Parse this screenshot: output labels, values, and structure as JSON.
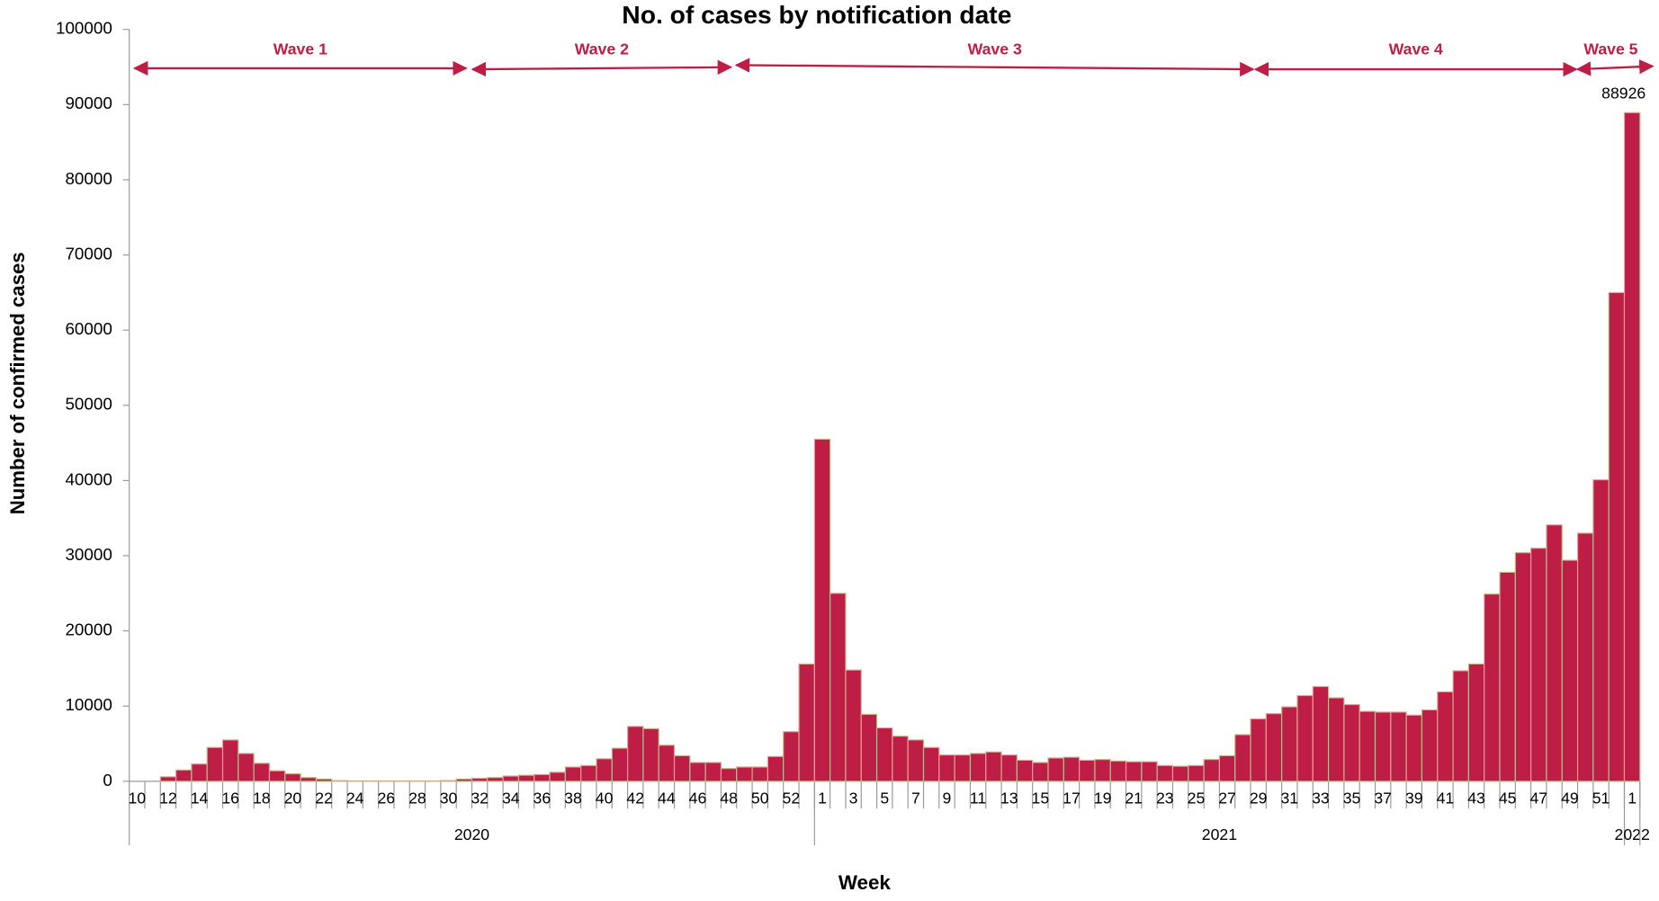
{
  "chart_data": {
    "type": "bar",
    "title": "No. of cases by notification date",
    "x_label": "Week",
    "y_label": "Number of confirmed cases",
    "categories": [
      "10",
      null,
      "12",
      null,
      "14",
      null,
      "16",
      null,
      "18",
      null,
      "20",
      null,
      "22",
      null,
      "24",
      null,
      "26",
      null,
      "28",
      null,
      "30",
      null,
      "32",
      null,
      "34",
      null,
      "36",
      null,
      "38",
      null,
      "40",
      null,
      "42",
      null,
      "44",
      null,
      "46",
      null,
      "48",
      null,
      "50",
      null,
      "52",
      null,
      "1",
      null,
      "3",
      null,
      "5",
      null,
      "7",
      null,
      "9",
      null,
      "11",
      null,
      "13",
      null,
      "15",
      null,
      "17",
      null,
      "19",
      null,
      "21",
      null,
      "23",
      null,
      "25",
      null,
      "27",
      null,
      "29",
      null,
      "31",
      null,
      "33",
      null,
      "35",
      null,
      "37",
      null,
      "39",
      null,
      "41",
      null,
      "43",
      null,
      "45",
      null,
      "47",
      null,
      "49",
      null,
      "51",
      null,
      "1"
    ],
    "year_labels": [
      "2020",
      "2021",
      "2022"
    ],
    "series": [
      {
        "name": "Confirmed cases",
        "color": "#be1e45",
        "values": [
          0,
          0,
          600,
          1500,
          2300,
          4500,
          5500,
          3700,
          2400,
          1400,
          1000,
          500,
          300,
          100,
          50,
          50,
          50,
          50,
          50,
          50,
          100,
          300,
          400,
          500,
          700,
          800,
          900,
          1200,
          1900,
          2100,
          3000,
          4400,
          7300,
          7000,
          4800,
          3400,
          2500,
          2500,
          1700,
          1900,
          1900,
          3300,
          6600,
          15600,
          45500,
          25000,
          14800,
          8900,
          7100,
          6000,
          5500,
          4500,
          3500,
          3500,
          3700,
          3900,
          3500,
          2800,
          2500,
          3100,
          3200,
          2800,
          2900,
          2700,
          2600,
          2600,
          2100,
          2000,
          2100,
          2900,
          3400,
          6200,
          8300,
          9000,
          9900,
          11400,
          12600,
          11100,
          10200,
          9300,
          9200,
          9200,
          8800,
          9500,
          11900,
          14700,
          15600,
          24900,
          27800,
          30400,
          31000,
          34100,
          29400,
          33000,
          40100,
          65000,
          88926
        ]
      }
    ],
    "annotations": [
      "Wave 1",
      "Wave 2",
      "Wave 3",
      "Wave 4",
      "Wave 5"
    ],
    "ylim": [
      0,
      100000
    ],
    "yticks": [
      0,
      10000,
      20000,
      30000,
      40000,
      50000,
      60000,
      70000,
      80000,
      90000,
      100000
    ],
    "grid": false
  }
}
